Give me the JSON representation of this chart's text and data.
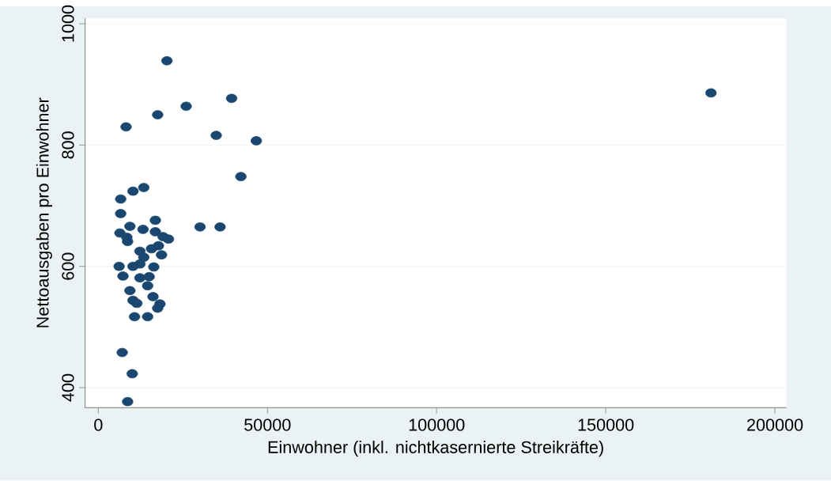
{
  "chart_data": {
    "type": "scatter",
    "xlabel": "Einwohner (inkl. nichtkasernierte Streikräfte)",
    "ylabel": "Nettoausgaben pro Einwohner",
    "xlim": [
      -3900,
      203400
    ],
    "ylim": [
      367,
      1009
    ],
    "xticks": [
      0,
      50000,
      100000,
      150000,
      200000
    ],
    "yticks": [
      400,
      600,
      800,
      1000
    ],
    "grid": "y",
    "marker": "circle",
    "series": [
      {
        "color": "#1a476f",
        "x": [
          20270,
          25970,
          39410,
          17540,
          8200,
          34850,
          46700,
          181100,
          42140,
          6610,
          10250,
          13440,
          6610,
          30070,
          35990,
          16860,
          9340,
          13210,
          6380,
          8430,
          8660,
          16860,
          19130,
          20730,
          17770,
          15720,
          12300,
          13440,
          18680,
          6150,
          10250,
          12300,
          16400,
          7290,
          12300,
          15030,
          14580,
          9340,
          16170,
          10250,
          11390,
          18220,
          17540,
          10710,
          14580,
          7060,
          10020,
          8660
        ],
        "values": [
          939,
          864,
          877,
          850,
          830,
          816,
          807,
          886,
          748,
          711,
          724,
          730,
          687,
          665,
          665,
          676,
          666,
          661,
          655,
          648,
          641,
          657,
          649,
          645,
          634,
          629,
          625,
          615,
          619,
          600,
          600,
          604,
          599,
          584,
          581,
          583,
          568,
          560,
          550,
          544,
          539,
          538,
          531,
          517,
          517,
          458,
          423,
          377
        ]
      }
    ]
  }
}
